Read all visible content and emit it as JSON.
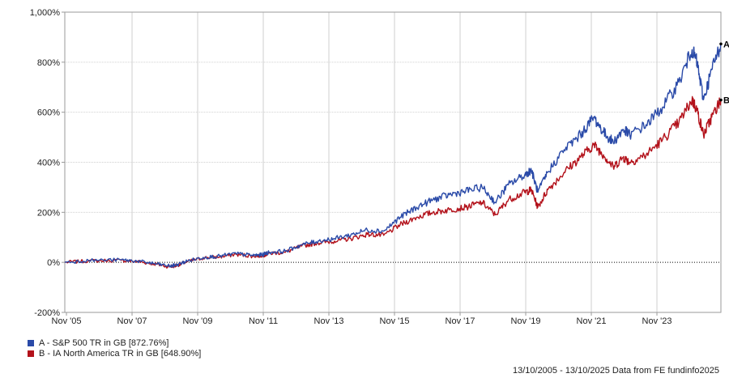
{
  "chart_data": {
    "type": "line",
    "y_tick_labels": [
      "-200%",
      "0%",
      "200%",
      "400%",
      "600%",
      "800%",
      "1,000%"
    ],
    "y_ticks": [
      -200,
      0,
      200,
      400,
      600,
      800,
      1000
    ],
    "ylim": [
      -200,
      1000
    ],
    "x_tick_labels": [
      "Nov '05",
      "Nov '07",
      "Nov '09",
      "Nov '11",
      "Nov '13",
      "Nov '15",
      "Nov '17",
      "Nov '19",
      "Nov '21",
      "Nov '23"
    ],
    "x_ticks": [
      2005.83,
      2007.83,
      2009.83,
      2011.83,
      2013.83,
      2015.83,
      2017.83,
      2019.83,
      2021.83,
      2023.83
    ],
    "xlim": [
      2005.78,
      2025.78
    ],
    "grid": true,
    "zero_line": true,
    "series": [
      {
        "name": "A - S&P 500 TR in GB [872.76%]",
        "end_label": "A",
        "color": "#2a4aa8",
        "x": [
          2005.78,
          2006.5,
          2007.5,
          2008.0,
          2008.5,
          2009.0,
          2009.2,
          2009.5,
          2010.0,
          2010.5,
          2011.0,
          2011.5,
          2011.8,
          2012.0,
          2012.5,
          2013.0,
          2013.5,
          2014.0,
          2014.5,
          2015.0,
          2015.5,
          2016.0,
          2016.5,
          2017.0,
          2017.5,
          2018.0,
          2018.5,
          2018.9,
          2019.3,
          2019.8,
          2020.0,
          2020.2,
          2020.5,
          2021.0,
          2021.5,
          2021.9,
          2022.2,
          2022.5,
          2022.8,
          2023.0,
          2023.5,
          2024.0,
          2024.5,
          2024.9,
          2025.05,
          2025.25,
          2025.5,
          2025.78
        ],
        "y": [
          0,
          8,
          10,
          5,
          -5,
          -15,
          -10,
          5,
          20,
          25,
          35,
          28,
          30,
          40,
          45,
          70,
          85,
          95,
          110,
          130,
          125,
          180,
          220,
          250,
          270,
          285,
          300,
          240,
          310,
          350,
          370,
          280,
          360,
          450,
          510,
          580,
          520,
          480,
          530,
          510,
          550,
          620,
          720,
          850,
          800,
          650,
          770,
          873
        ]
      },
      {
        "name": "B - IA North America TR in GB [648.90%]",
        "end_label": "B",
        "color": "#b3121b",
        "x": [
          2005.78,
          2006.5,
          2007.5,
          2008.0,
          2008.5,
          2009.0,
          2009.2,
          2009.5,
          2010.0,
          2010.5,
          2011.0,
          2011.5,
          2011.8,
          2012.0,
          2012.5,
          2013.0,
          2013.5,
          2014.0,
          2014.5,
          2015.0,
          2015.5,
          2016.0,
          2016.5,
          2017.0,
          2017.5,
          2018.0,
          2018.5,
          2018.9,
          2019.3,
          2019.8,
          2020.0,
          2020.2,
          2020.5,
          2021.0,
          2021.5,
          2021.9,
          2022.2,
          2022.5,
          2022.8,
          2023.0,
          2023.5,
          2024.0,
          2024.5,
          2024.9,
          2025.05,
          2025.25,
          2025.5,
          2025.78
        ],
        "y": [
          0,
          6,
          8,
          3,
          -6,
          -18,
          -12,
          2,
          18,
          22,
          32,
          25,
          27,
          36,
          40,
          65,
          78,
          85,
          95,
          112,
          108,
          150,
          180,
          200,
          210,
          220,
          240,
          190,
          250,
          280,
          290,
          220,
          290,
          360,
          420,
          470,
          430,
          380,
          420,
          400,
          430,
          490,
          560,
          650,
          610,
          510,
          580,
          649
        ]
      }
    ],
    "footer": "13/10/2005 - 13/10/2025 Data from FE fundinfo2025"
  }
}
